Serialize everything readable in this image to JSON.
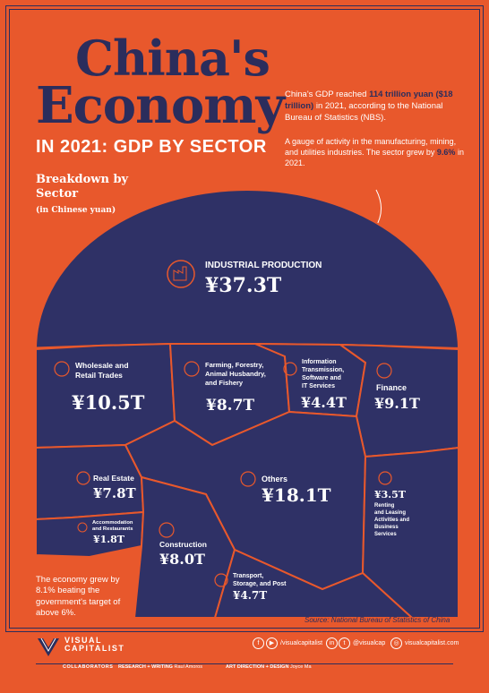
{
  "header": {
    "title_line1": "China's",
    "title_line2": "Economy",
    "subtitle": "IN 2021: GDP BY SECTOR"
  },
  "intro": {
    "gdp_part1": "China's GDP reached ",
    "gdp_bold1": "114 trillion yuan",
    "gdp_bold2": "($18 trillion)",
    "gdp_part2": " in 2021, according to the National Bureau of Statistics (NBS).",
    "industrial_note_part1": "A gauge of activity in the manufacturing, mining, and utilities industries. The sector grew by ",
    "industrial_note_bold": "9.6%",
    "industrial_note_part2": " in 2021."
  },
  "breakdown": {
    "label": "Breakdown by Sector",
    "sublabel": "(in Chinese yuan)"
  },
  "chart_data": {
    "type": "voronoi-semicircle",
    "unit": "trillion yuan",
    "sectors": [
      {
        "name": "INDUSTRIAL PRODUCTION",
        "value": 37.3,
        "label": "¥37.3T",
        "icon": "factory-icon"
      },
      {
        "name": "Wholesale and Retail Trades",
        "value": 10.5,
        "label": "¥10.5T",
        "icon": "cart-icon"
      },
      {
        "name": "Farming, Forestry, Animal Husbandry, and Fishery",
        "value": 8.7,
        "label": "¥8.7T",
        "icon": "wheat-icon"
      },
      {
        "name": "Information Transmission, Software and IT Services",
        "value": 4.4,
        "label": "¥4.4T",
        "icon": "signal-icon"
      },
      {
        "name": "Finance",
        "value": 9.1,
        "label": "¥9.1T",
        "icon": "bank-icon"
      },
      {
        "name": "Real Estate",
        "value": 7.8,
        "label": "¥7.8T",
        "icon": "building-icon"
      },
      {
        "name": "Others",
        "value": 18.1,
        "label": "¥18.1T",
        "icon": "dots-icon"
      },
      {
        "name": "Accommodation and Restaurants",
        "value": 1.8,
        "label": "¥1.8T",
        "icon": "bed-icon"
      },
      {
        "name": "Construction",
        "value": 8.0,
        "label": "¥8.0T",
        "icon": "crane-icon"
      },
      {
        "name": "Renting and Leasing Activities and Business Services",
        "value": 3.5,
        "label": "¥3.5T",
        "icon": "chart-icon"
      },
      {
        "name": "Transport, Storage, and Post",
        "value": 4.7,
        "label": "¥4.7T",
        "icon": "truck-icon"
      }
    ],
    "colors": {
      "cell": "#2f3166",
      "cell_alt": "#2b2d5c",
      "border": "#e8582c",
      "background": "#e8582c"
    }
  },
  "notes": {
    "growth": "The economy grew by 8.1% beating the government's target of above 6%.",
    "source": "Source: National Bureau of Statistics of China"
  },
  "footer": {
    "brand_line1": "VISUAL",
    "brand_line2": "CAPITALIST",
    "handle1": "/visualcapitalist",
    "handle2": "@visualcap",
    "website": "visualcapitalist.com",
    "collaborators": "COLLABORATORS",
    "research_role": "RESEARCH + WRITING",
    "research_name": "Raul Amoros",
    "design_role": "ART DIRECTION + DESIGN",
    "design_name": "Joyce Ma"
  }
}
